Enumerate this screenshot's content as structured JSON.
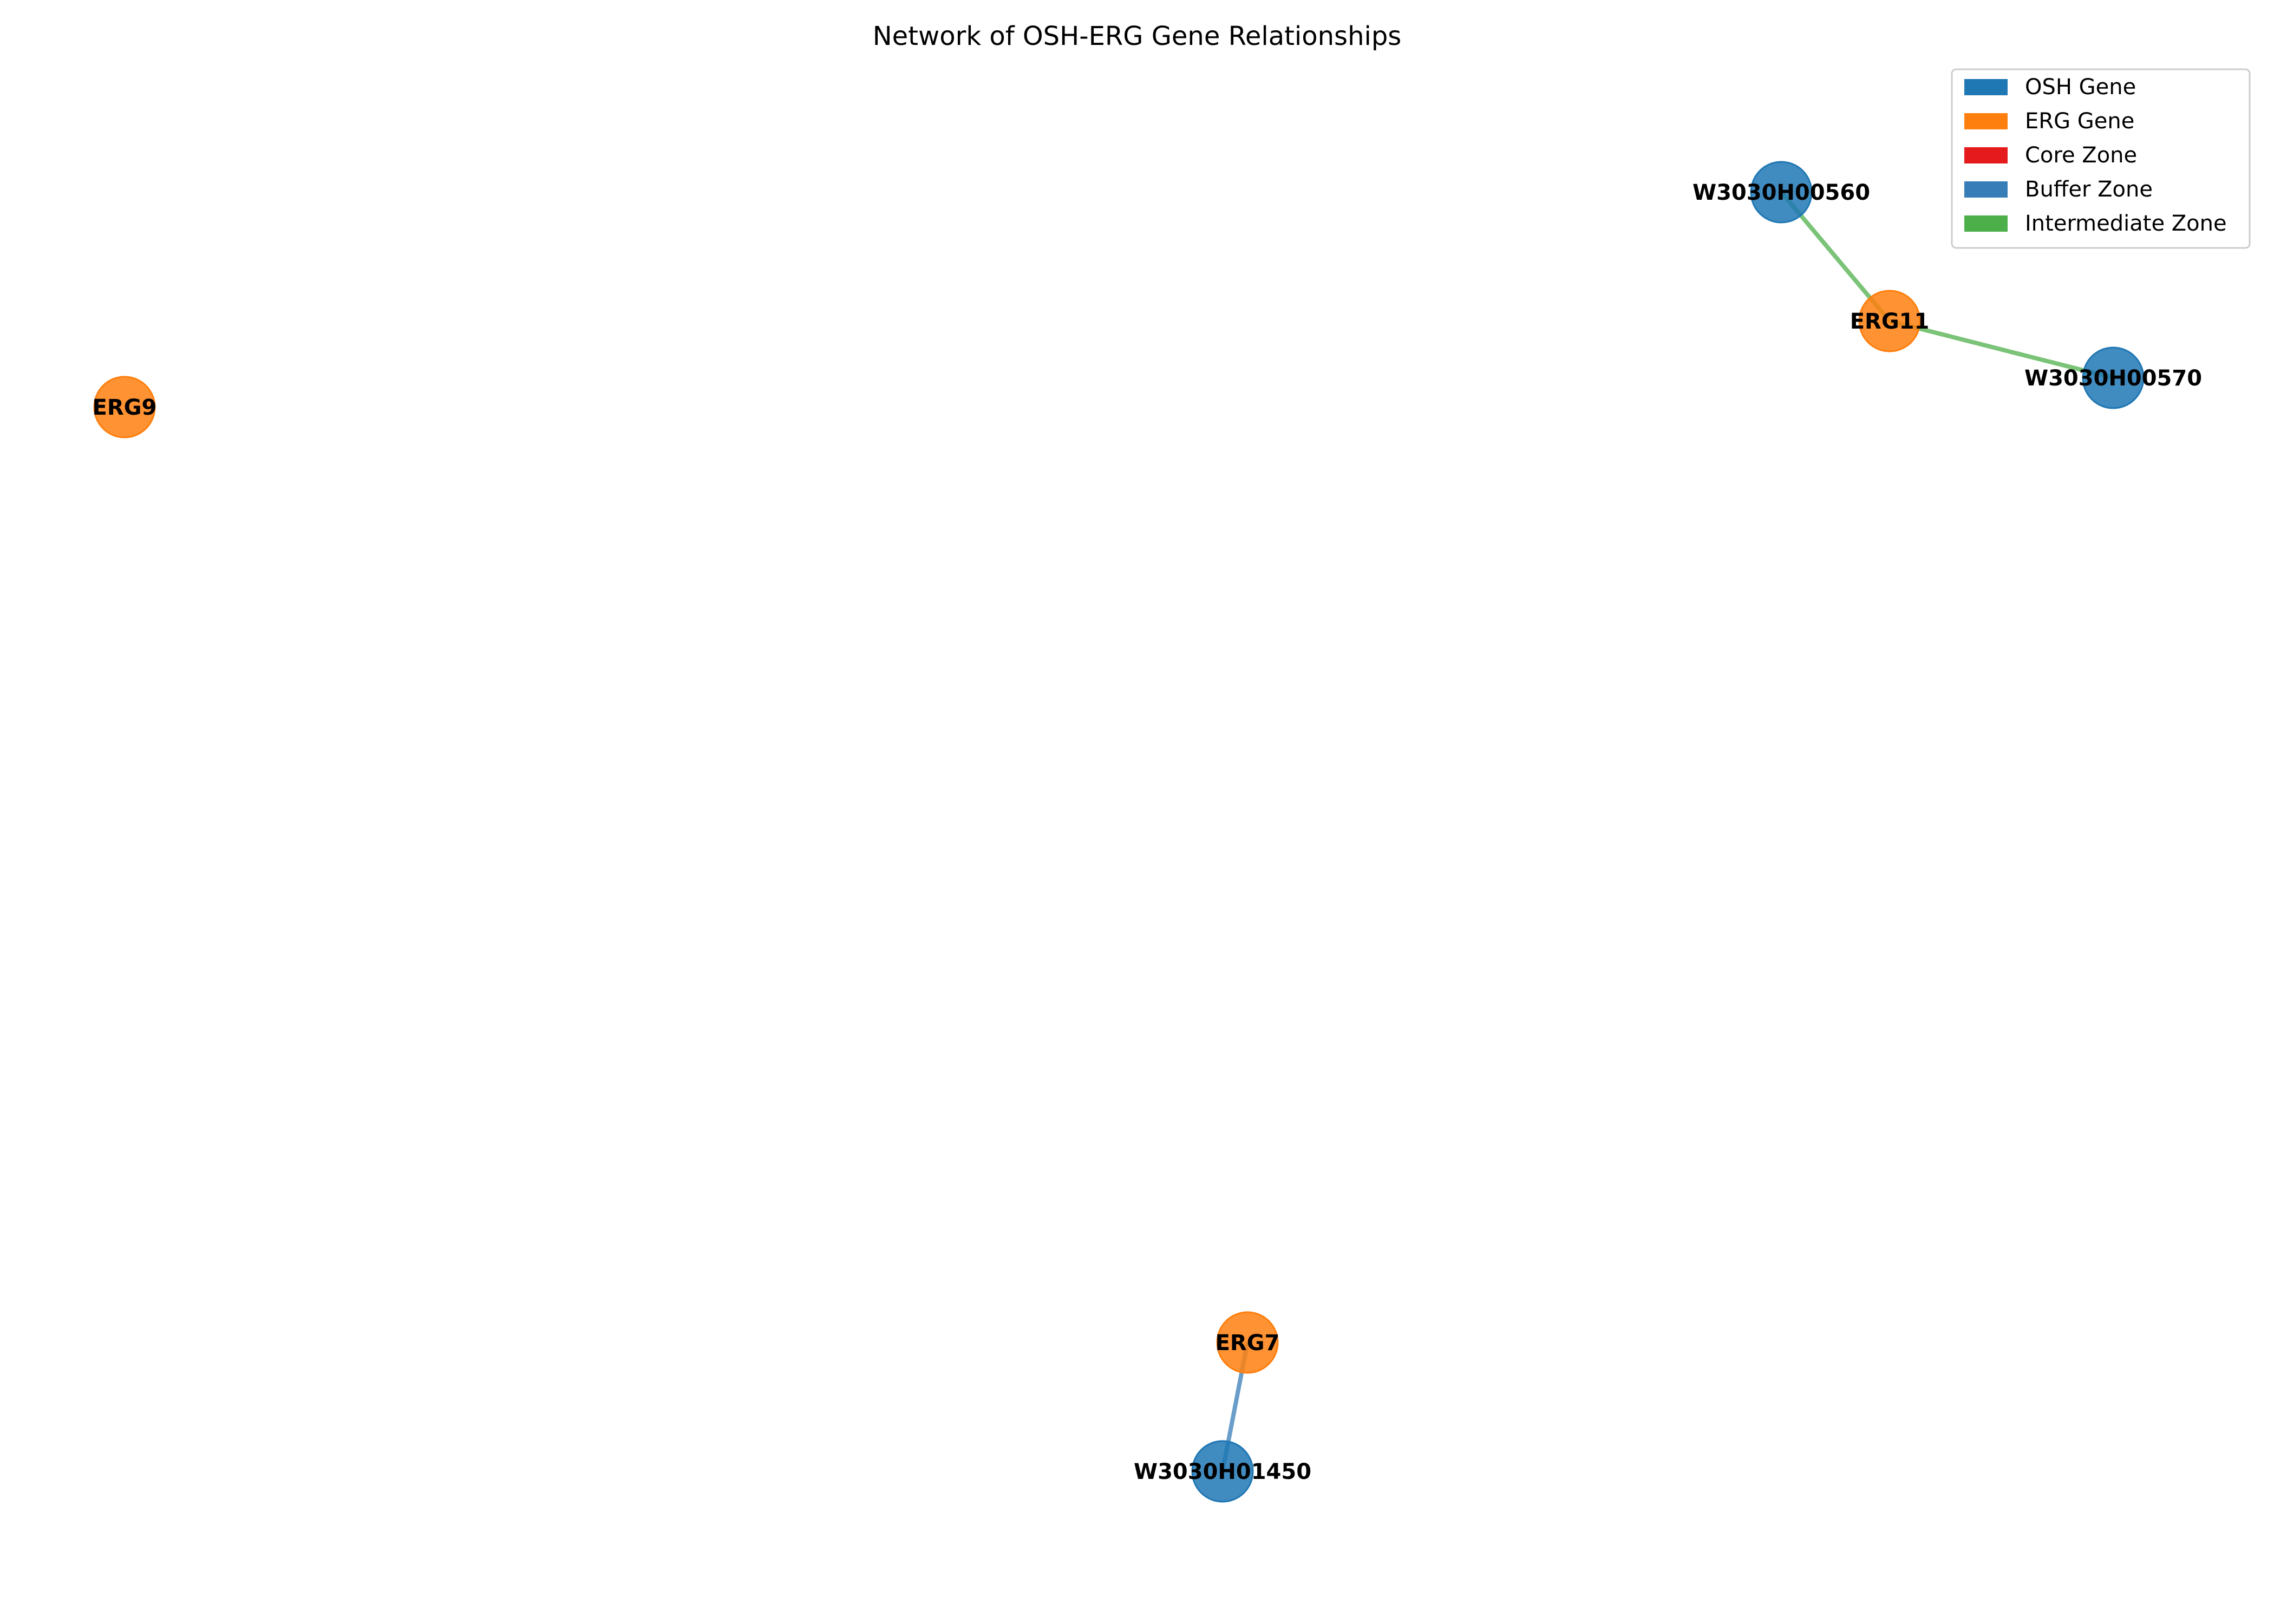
{
  "title": "Network of OSH-ERG Gene Relationships",
  "colors": {
    "osh": "#1f77b4",
    "erg": "#ff7f0e",
    "core_zone": "#e41a1c",
    "buffer_zone": "#377eb8",
    "intermediate_zone": "#4daf4a"
  },
  "legend": {
    "placement": "top-right",
    "items": [
      {
        "label": "OSH Gene",
        "color": "#1f77b4"
      },
      {
        "label": "ERG Gene",
        "color": "#ff7f0e"
      },
      {
        "label": "Core Zone",
        "color": "#e41a1c"
      },
      {
        "label": "Buffer Zone",
        "color": "#377eb8"
      },
      {
        "label": "Intermediate Zone",
        "color": "#4daf4a"
      }
    ]
  },
  "nodes": [
    {
      "id": "W3030H00560",
      "label": "W3030H00560",
      "type": "osh"
    },
    {
      "id": "ERG11",
      "label": "ERG11",
      "type": "erg"
    },
    {
      "id": "W3030H00570",
      "label": "W3030H00570",
      "type": "osh"
    },
    {
      "id": "ERG9",
      "label": "ERG9",
      "type": "erg"
    },
    {
      "id": "ERG7",
      "label": "ERG7",
      "type": "erg"
    },
    {
      "id": "W3030H01450",
      "label": "W3030H01450",
      "type": "osh"
    }
  ],
  "edges": [
    {
      "source": "W3030H00560",
      "target": "ERG11",
      "zone": "intermediate_zone"
    },
    {
      "source": "ERG11",
      "target": "W3030H00570",
      "zone": "intermediate_zone"
    },
    {
      "source": "ERG7",
      "target": "W3030H01450",
      "zone": "buffer_zone"
    }
  ]
}
